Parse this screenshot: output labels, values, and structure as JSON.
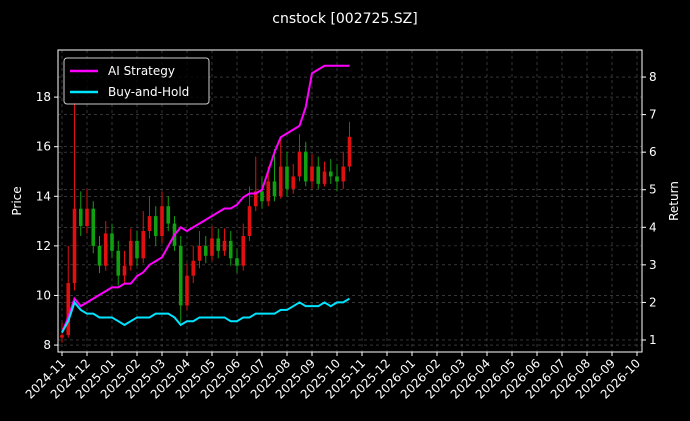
{
  "chart_data": {
    "type": "candlestick",
    "title": "cnstock [002725.SZ]",
    "ylabel": "Price",
    "y2label": "Return",
    "x": [
      0,
      0.25,
      0.5,
      0.75,
      1,
      1.25,
      1.5,
      1.75,
      2,
      2.25,
      2.5,
      2.75,
      3,
      3.25,
      3.5,
      3.75,
      4,
      4.25,
      4.5,
      4.75,
      5,
      5.25,
      5.5,
      5.75,
      6,
      6.25,
      6.5,
      6.75,
      7,
      7.25,
      7.5,
      7.75,
      8,
      8.25,
      8.5,
      8.75,
      9,
      9.25,
      9.5,
      9.75,
      10,
      10.25,
      10.5,
      10.75,
      11,
      11.25,
      11.5
    ],
    "open": [
      8.3,
      8.4,
      10.5,
      13.5,
      12.8,
      13.5,
      12.0,
      11.2,
      12.5,
      11.8,
      10.8,
      11.2,
      12.2,
      11.5,
      12.6,
      13.2,
      12.4,
      13.6,
      12.9,
      12.0,
      9.6,
      10.8,
      11.4,
      12.0,
      11.6,
      12.3,
      11.8,
      12.2,
      11.5,
      11.2,
      12.4,
      13.6,
      14.2,
      13.8,
      14.6,
      14.0,
      15.2,
      14.3,
      14.8,
      15.8,
      14.6,
      15.2,
      14.5,
      15.0,
      14.8,
      14.6,
      15.2
    ],
    "high": [
      8.9,
      12.0,
      17.8,
      14.2,
      14.3,
      13.8,
      12.4,
      13.0,
      12.9,
      12.2,
      11.8,
      12.7,
      12.6,
      13.4,
      14.0,
      13.6,
      14.2,
      14.0,
      13.2,
      12.4,
      11.3,
      12.0,
      12.6,
      12.4,
      12.8,
      12.7,
      12.7,
      12.6,
      11.9,
      12.9,
      14.4,
      15.6,
      14.8,
      15.2,
      15.9,
      16.3,
      15.8,
      15.3,
      16.5,
      16.2,
      15.7,
      15.6,
      15.4,
      15.5,
      15.3,
      15.8,
      17.0
    ],
    "low": [
      8.1,
      8.3,
      10.2,
      12.4,
      12.5,
      11.7,
      10.9,
      11.0,
      11.5,
      10.4,
      10.5,
      11.0,
      11.2,
      11.3,
      12.3,
      12.0,
      12.1,
      12.6,
      11.8,
      8.9,
      9.4,
      10.5,
      11.1,
      11.3,
      11.4,
      11.5,
      11.6,
      11.2,
      10.9,
      11.0,
      12.2,
      13.4,
      13.5,
      13.6,
      13.8,
      13.9,
      14.0,
      14.1,
      14.6,
      14.4,
      14.3,
      14.3,
      14.4,
      14.5,
      14.2,
      14.3,
      15.0
    ],
    "close": [
      8.4,
      10.5,
      13.5,
      12.8,
      13.5,
      12.0,
      11.2,
      12.5,
      11.8,
      10.8,
      11.2,
      12.2,
      11.5,
      12.6,
      13.2,
      12.4,
      13.6,
      12.9,
      12.0,
      9.6,
      10.8,
      11.4,
      12.0,
      11.6,
      12.3,
      11.8,
      12.2,
      11.5,
      11.2,
      12.4,
      13.6,
      14.2,
      13.8,
      14.6,
      14.0,
      15.2,
      14.3,
      14.8,
      15.8,
      14.6,
      15.2,
      14.5,
      15.0,
      14.8,
      14.6,
      15.2,
      16.4
    ],
    "up_color": "#e01010",
    "down_color": "#10a010",
    "series": [
      {
        "name": "AI Strategy",
        "color": "#ff00ff",
        "axis": "y2",
        "values": [
          1.2,
          1.6,
          2.1,
          1.9,
          2.0,
          2.1,
          2.2,
          2.3,
          2.4,
          2.4,
          2.5,
          2.5,
          2.7,
          2.8,
          3.0,
          3.1,
          3.2,
          3.5,
          3.8,
          4.0,
          3.9,
          4.0,
          4.1,
          4.2,
          4.3,
          4.4,
          4.5,
          4.5,
          4.6,
          4.8,
          4.9,
          4.9,
          5.0,
          5.5,
          6.0,
          6.4,
          6.5,
          6.6,
          6.7,
          7.2,
          8.1,
          8.2,
          8.3,
          8.3,
          8.3,
          8.3,
          8.3
        ]
      },
      {
        "name": "Buy-and-Hold",
        "color": "#00e5ff",
        "axis": "y2",
        "values": [
          1.2,
          1.5,
          2.0,
          1.8,
          1.7,
          1.7,
          1.6,
          1.6,
          1.6,
          1.5,
          1.4,
          1.5,
          1.6,
          1.6,
          1.6,
          1.7,
          1.7,
          1.7,
          1.6,
          1.4,
          1.5,
          1.5,
          1.6,
          1.6,
          1.6,
          1.6,
          1.6,
          1.5,
          1.5,
          1.6,
          1.6,
          1.7,
          1.7,
          1.7,
          1.7,
          1.8,
          1.8,
          1.9,
          2.0,
          1.9,
          1.9,
          1.9,
          2.0,
          1.9,
          2.0,
          2.0,
          2.1
        ]
      }
    ],
    "xlim": [
      -0.16,
      23.2
    ],
    "xticks": [
      {
        "value": 0,
        "label": "2024-11"
      },
      {
        "value": 1,
        "label": "2024-12"
      },
      {
        "value": 2,
        "label": "2025-01"
      },
      {
        "value": 3,
        "label": "2025-02"
      },
      {
        "value": 4,
        "label": "2025-03"
      },
      {
        "value": 5,
        "label": "2025-04"
      },
      {
        "value": 6,
        "label": "2025-05"
      },
      {
        "value": 7,
        "label": "2025-06"
      },
      {
        "value": 8,
        "label": "2025-07"
      },
      {
        "value": 9,
        "label": "2025-08"
      },
      {
        "value": 10,
        "label": "2025-09"
      },
      {
        "value": 11,
        "label": "2025-10"
      },
      {
        "value": 12,
        "label": "2025-11"
      },
      {
        "value": 13,
        "label": "2025-12"
      },
      {
        "value": 14,
        "label": "2026-01"
      },
      {
        "value": 15,
        "label": "2026-02"
      },
      {
        "value": 16,
        "label": "2026-03"
      },
      {
        "value": 17,
        "label": "2026-04"
      },
      {
        "value": 18,
        "label": "2026-05"
      },
      {
        "value": 19,
        "label": "2026-06"
      },
      {
        "value": 20,
        "label": "2026-07"
      },
      {
        "value": 21,
        "label": "2026-08"
      },
      {
        "value": 22,
        "label": "2026-09"
      },
      {
        "value": 23,
        "label": "2026-10"
      }
    ],
    "ylim": [
      7.72,
      19.9
    ],
    "yticks": [
      8,
      10,
      12,
      14,
      16,
      18
    ],
    "y2lim": [
      0.68,
      8.72
    ],
    "y2ticks": [
      1,
      2,
      3,
      4,
      5,
      6,
      7,
      8
    ],
    "grid": true,
    "legend": "upper left"
  }
}
